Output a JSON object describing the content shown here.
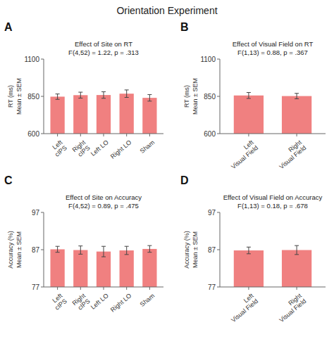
{
  "title": "Orientation Experiment",
  "chart_data": [
    {
      "type": "bar",
      "annotations": [
        "A"
      ],
      "title": "Effect of Site on RT",
      "subtitle": "F(4,52) = 1.22, p = .313",
      "categories": [
        "Left\ncIPS",
        "Right\ncIPS",
        "Left LO",
        "Right LO",
        "Sham"
      ],
      "values": [
        848,
        858,
        859,
        868,
        840
      ],
      "errors": [
        18,
        20,
        22,
        25,
        22
      ],
      "y_label": "RT (ms)\nMean ± SEM",
      "ylim": [
        600,
        1100
      ],
      "yticks": [
        600,
        850,
        1100
      ],
      "color": "#F08080"
    },
    {
      "type": "bar",
      "annotations": [
        "B"
      ],
      "title": "Effect of Visual Field on RT",
      "subtitle": "F(1,13) = 0.88, p = .367",
      "categories": [
        "Left\nVisual Field",
        "Right\nVisual Field"
      ],
      "values": [
        856,
        852
      ],
      "errors": [
        20,
        18
      ],
      "y_label": "RT (ms)\nMean ± SEM",
      "ylim": [
        600,
        1100
      ],
      "yticks": [
        600,
        850,
        1100
      ],
      "color": "#F08080"
    },
    {
      "type": "bar",
      "annotations": [
        "C"
      ],
      "title": "Effect of Site on Accuracy",
      "subtitle": "F(4,52) = 0.89, p = .475",
      "categories": [
        "Left\ncIPS",
        "Right\ncIPS",
        "Left LO",
        "Right LO",
        "Sham"
      ],
      "values": [
        87.1,
        86.9,
        86.5,
        86.8,
        87.2
      ],
      "errors": [
        0.8,
        1.1,
        1.4,
        1.1,
        0.9
      ],
      "y_label": "Accuracy (%)\nMean ± SEM",
      "ylim": [
        77,
        97
      ],
      "yticks": [
        77,
        87,
        97
      ],
      "color": "#F08080"
    },
    {
      "type": "bar",
      "annotations": [
        "D"
      ],
      "title": "Effect of Visual Field on Accuracy",
      "subtitle": "F(1,13) = 0.18, p = .678",
      "categories": [
        "Left\nVisual Field",
        "Right\nVisual Field"
      ],
      "values": [
        86.8,
        86.9
      ],
      "errors": [
        0.9,
        1.2
      ],
      "y_label": "Accuracy (%)\nMean ± SEM",
      "ylim": [
        77,
        97
      ],
      "yticks": [
        77,
        87,
        97
      ],
      "color": "#F08080"
    }
  ]
}
